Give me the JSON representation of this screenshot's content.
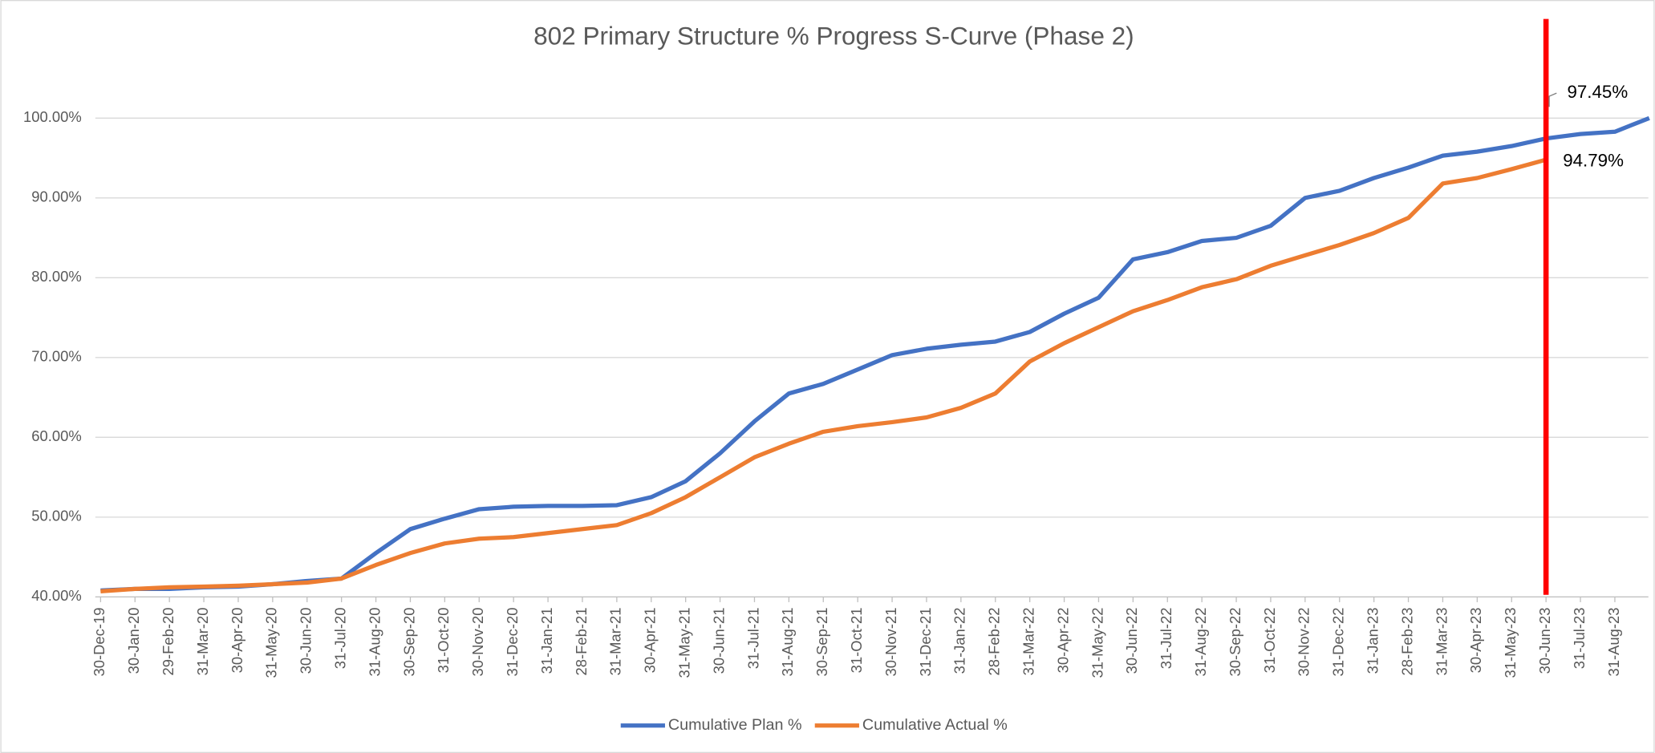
{
  "chart_data": {
    "type": "line",
    "title": "802 Primary Structure % Progress S-Curve (Phase 2)",
    "categories": [
      "30-Dec-19",
      "30-Jan-20",
      "29-Feb-20",
      "31-Mar-20",
      "30-Apr-20",
      "31-May-20",
      "30-Jun-20",
      "31-Jul-20",
      "31-Aug-20",
      "30-Sep-20",
      "31-Oct-20",
      "30-Nov-20",
      "31-Dec-20",
      "31-Jan-21",
      "28-Feb-21",
      "31-Mar-21",
      "30-Apr-21",
      "31-May-21",
      "30-Jun-21",
      "31-Jul-21",
      "31-Aug-21",
      "30-Sep-21",
      "31-Oct-21",
      "30-Nov-21",
      "31-Dec-21",
      "31-Jan-22",
      "28-Feb-22",
      "31-Mar-22",
      "30-Apr-22",
      "31-May-22",
      "30-Jun-22",
      "31-Jul-22",
      "31-Aug-22",
      "30-Sep-22",
      "31-Oct-22",
      "30-Nov-22",
      "31-Dec-22",
      "31-Jan-23",
      "28-Feb-23",
      "31-Mar-23",
      "30-Apr-23",
      "31-May-23",
      "30-Jun-23",
      "31-Jul-23",
      "31-Aug-23",
      null
    ],
    "series": [
      {
        "name": "Cumulative Plan %",
        "color": "#4472c4",
        "values": [
          40.8,
          41.0,
          41.0,
          41.2,
          41.3,
          41.6,
          42.0,
          42.3,
          45.5,
          48.5,
          49.8,
          51.0,
          51.3,
          51.4,
          51.4,
          51.5,
          52.5,
          54.5,
          58.0,
          62.0,
          65.5,
          66.7,
          68.5,
          70.3,
          71.1,
          71.6,
          72.0,
          73.2,
          75.5,
          77.5,
          82.3,
          83.2,
          84.6,
          85.0,
          86.5,
          90.0,
          90.9,
          92.5,
          93.8,
          95.3,
          95.8,
          96.5,
          97.45,
          98.0,
          98.3,
          100
        ]
      },
      {
        "name": "Cumulative Actual %",
        "color": "#ed7d31",
        "values": [
          40.7,
          41.0,
          41.2,
          41.3,
          41.4,
          41.6,
          41.8,
          42.3,
          44.0,
          45.5,
          46.7,
          47.3,
          47.5,
          48.0,
          48.5,
          49.0,
          50.5,
          52.5,
          55.0,
          57.5,
          59.2,
          60.7,
          61.4,
          61.9,
          62.5,
          63.7,
          65.5,
          69.5,
          71.8,
          73.8,
          75.8,
          77.2,
          78.8,
          79.8,
          81.5,
          82.8,
          84.1,
          85.6,
          87.5,
          91.8,
          92.5,
          93.6,
          94.79,
          null,
          null,
          null
        ]
      }
    ],
    "ylim": [
      40,
      100
    ],
    "yticks": [
      {
        "value": 40,
        "label": "40.00%"
      },
      {
        "value": 50,
        "label": "50.00%"
      },
      {
        "value": 60,
        "label": "60.00%"
      },
      {
        "value": 70,
        "label": "70.00%"
      },
      {
        "value": 80,
        "label": "80.00%"
      },
      {
        "value": 90,
        "label": "90.00%"
      },
      {
        "value": 100,
        "label": "100.00%"
      }
    ],
    "grid": true,
    "legend": "bottom",
    "vline": {
      "x": "30-Jun-23",
      "color": "#ff0000"
    },
    "annotations": [
      {
        "label": "97.45%",
        "value": 97.45,
        "x": "30-Jun-23"
      },
      {
        "label": "94.79%",
        "value": 94.79,
        "x": "30-Jun-23"
      }
    ]
  }
}
